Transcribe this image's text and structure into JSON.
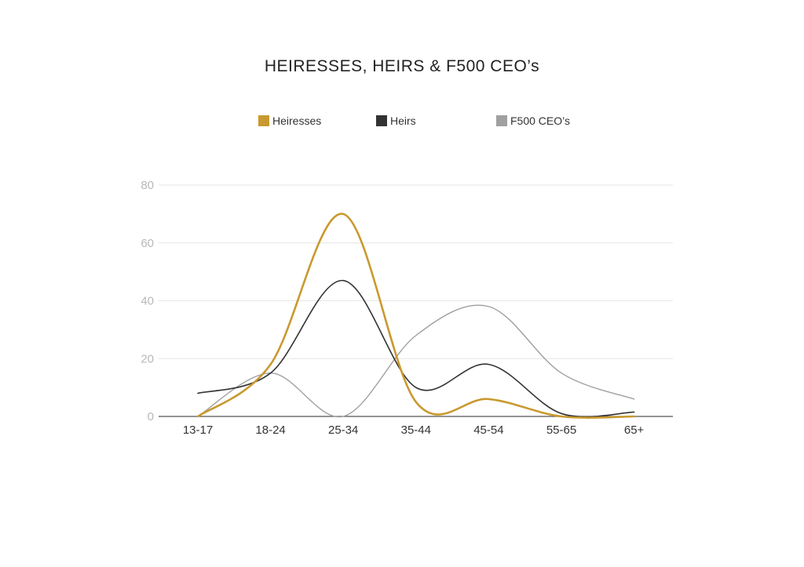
{
  "chart_data": {
    "type": "line",
    "title": "HEIRESSES, HEIRS & F500 CEO’s",
    "xlabel": "",
    "ylabel": "",
    "categories": [
      "13-17",
      "18-24",
      "25-34",
      "35-44",
      "45-54",
      "55-65",
      "65+"
    ],
    "ylim": [
      0,
      80
    ],
    "yticks": [
      0,
      20,
      40,
      60,
      80
    ],
    "grid": true,
    "legend_position": "top",
    "series": [
      {
        "name": "Heiresses",
        "color": "#c9992f",
        "values": [
          0,
          18,
          70,
          5,
          6,
          0,
          0
        ]
      },
      {
        "name": "Heirs",
        "color": "#333333",
        "values": [
          8,
          15,
          47,
          10,
          18,
          1,
          1.5
        ]
      },
      {
        "name": "F500 CEO’s",
        "color": "#a0a0a0",
        "values": [
          0,
          15,
          0,
          28,
          38,
          15,
          6
        ]
      }
    ]
  }
}
